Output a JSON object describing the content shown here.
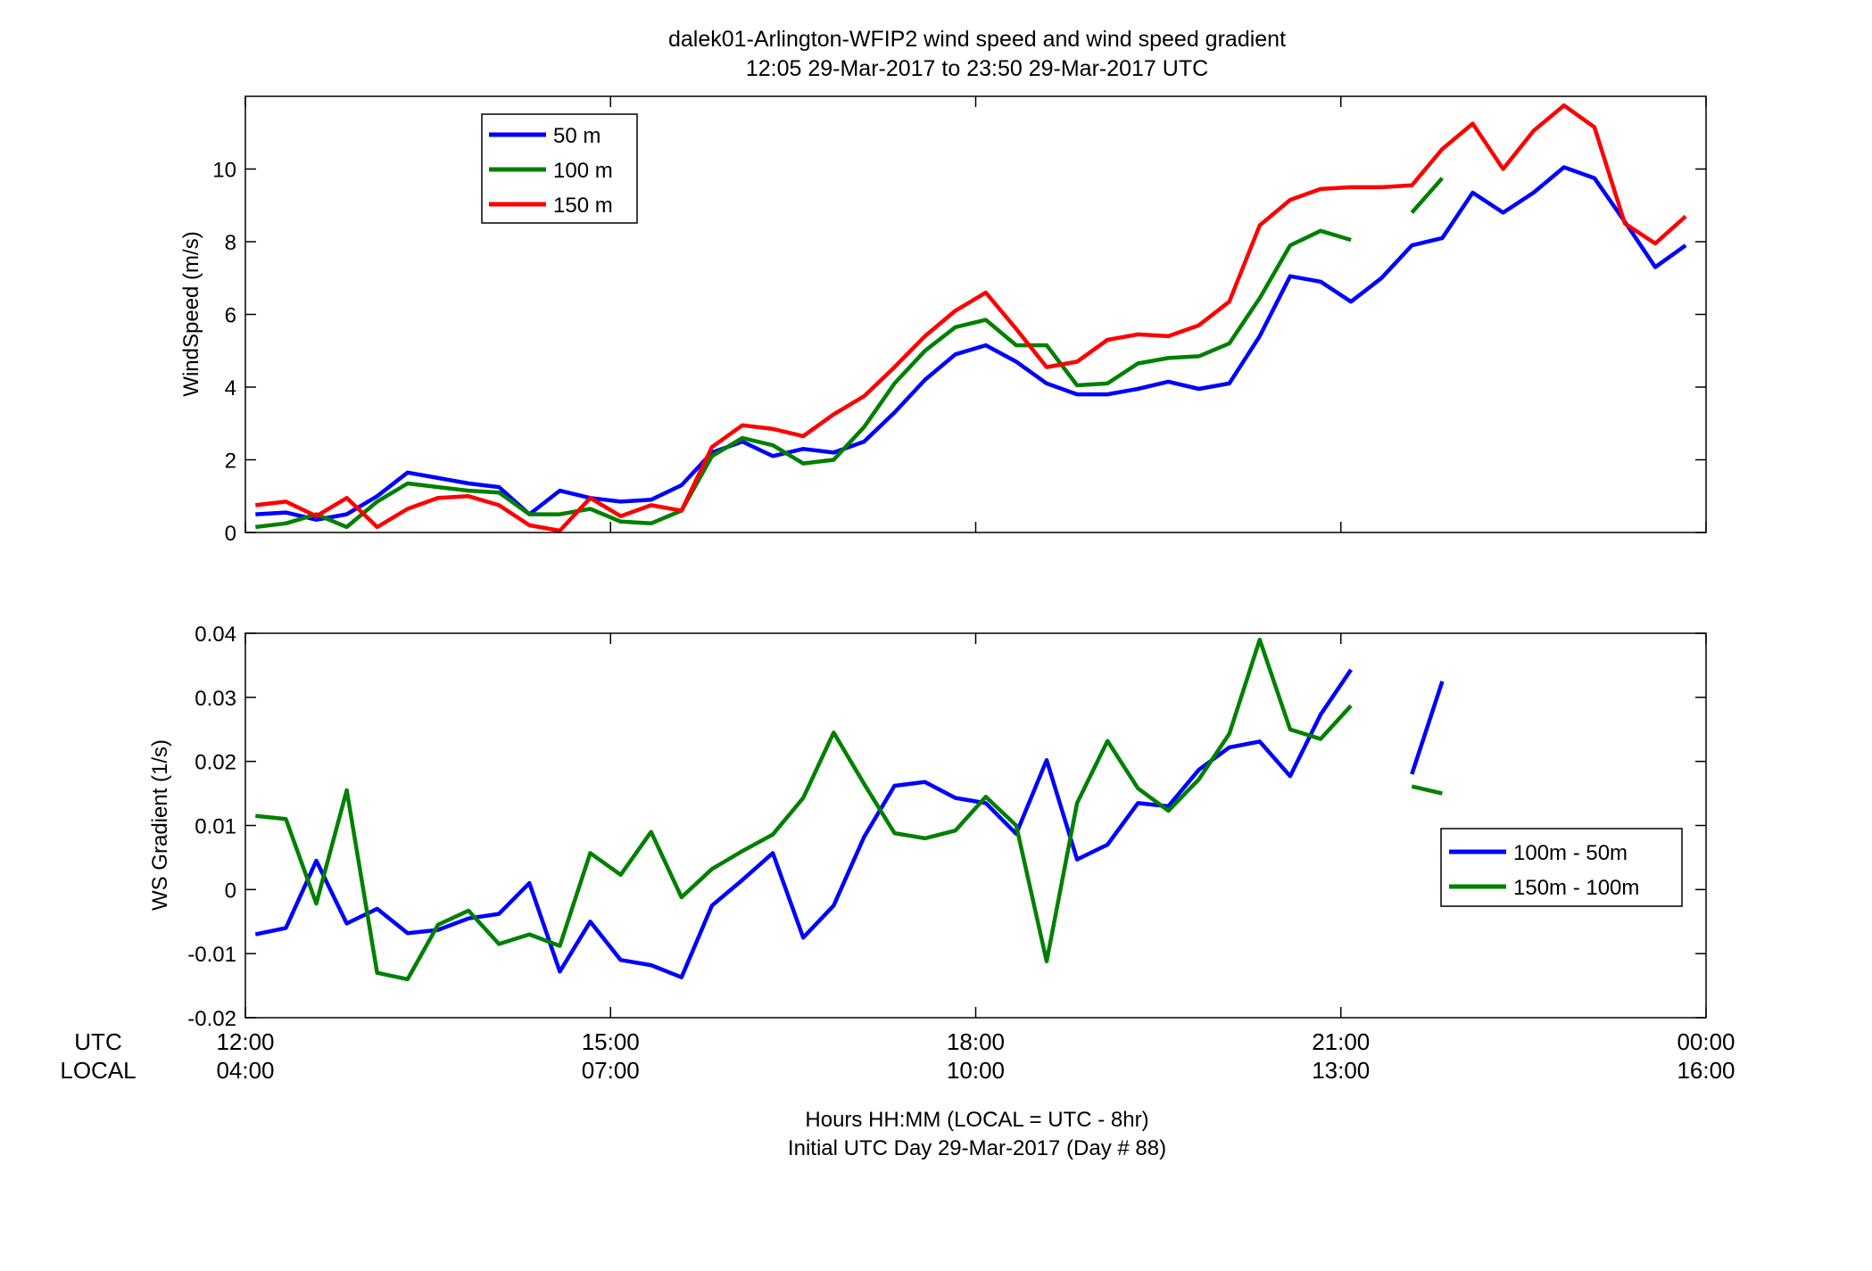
{
  "chart_data": [
    {
      "type": "line",
      "title": "dalek01-Arlington-WFIP2  wind speed and wind speed gradient",
      "subtitle": "12:05 29-Mar-2017 to 23:50 29-Mar-2017  UTC",
      "ylabel": "WindSpeed (m/s)",
      "xlim": [
        12,
        24
      ],
      "ylim": [
        0,
        12
      ],
      "yticks": [
        "0",
        "2",
        "4",
        "6",
        "8",
        "10"
      ],
      "grid": false,
      "legend_position": "top-left",
      "series": [
        {
          "name": "50 m",
          "color": "#0000ff",
          "x": [
            12.083,
            12.333,
            12.583,
            12.833,
            13.083,
            13.333,
            13.583,
            13.833,
            14.083,
            14.333,
            14.583,
            14.833,
            15.083,
            15.333,
            15.583,
            15.833,
            16.083,
            16.333,
            16.583,
            16.833,
            17.083,
            17.333,
            17.583,
            17.833,
            18.083,
            18.333,
            18.583,
            18.833,
            19.083,
            19.333,
            19.583,
            19.833,
            20.083,
            20.333,
            20.583,
            20.833,
            21.083,
            21.333,
            21.583,
            21.833,
            22.083,
            22.333,
            22.583,
            22.833,
            23.083,
            23.333,
            23.583,
            23.833
          ],
          "y": [
            0.5,
            0.55,
            0.35,
            0.5,
            1.0,
            1.65,
            1.5,
            1.35,
            1.25,
            0.5,
            1.15,
            0.95,
            0.85,
            0.9,
            1.3,
            2.2,
            2.5,
            2.1,
            2.3,
            2.2,
            2.5,
            3.3,
            4.2,
            4.9,
            5.15,
            4.7,
            4.1,
            3.8,
            3.8,
            3.95,
            4.15,
            3.95,
            4.1,
            5.4,
            7.05,
            6.9,
            6.35,
            7.0,
            7.9,
            8.1,
            9.35,
            8.8,
            9.35,
            10.05,
            9.75,
            8.55,
            7.3,
            7.9
          ]
        },
        {
          "name": "100 m",
          "color": "#008000",
          "x": [
            12.083,
            12.333,
            12.583,
            12.833,
            13.083,
            13.333,
            13.583,
            13.833,
            14.083,
            14.333,
            14.583,
            14.833,
            15.083,
            15.333,
            15.583,
            15.833,
            16.083,
            16.333,
            16.583,
            16.833,
            17.083,
            17.333,
            17.583,
            17.833,
            18.083,
            18.333,
            18.583,
            18.833,
            19.083,
            19.333,
            19.583,
            19.833,
            20.083,
            20.333,
            20.583,
            20.833,
            21.083,
            21.333,
            21.583,
            21.833
          ],
          "y": [
            0.15,
            0.25,
            0.5,
            0.15,
            0.85,
            1.35,
            1.25,
            1.15,
            1.1,
            0.5,
            0.5,
            0.65,
            0.3,
            0.25,
            0.6,
            2.1,
            2.6,
            2.4,
            1.9,
            2.0,
            2.9,
            4.1,
            5.0,
            5.65,
            5.85,
            5.15,
            5.15,
            4.05,
            4.1,
            4.65,
            4.8,
            4.85,
            5.2,
            6.45,
            7.9,
            8.3,
            8.05,
            null,
            8.8,
            9.75
          ]
        },
        {
          "name": "150 m",
          "color": "#ff0000",
          "x": [
            12.083,
            12.333,
            12.583,
            12.833,
            13.083,
            13.333,
            13.583,
            13.833,
            14.083,
            14.333,
            14.583,
            14.833,
            15.083,
            15.333,
            15.583,
            15.833,
            16.083,
            16.333,
            16.583,
            16.833,
            17.083,
            17.333,
            17.583,
            17.833,
            18.083,
            18.333,
            18.583,
            18.833,
            19.083,
            19.333,
            19.583,
            19.833,
            20.083,
            20.333,
            20.583,
            20.833,
            21.083,
            21.333,
            21.583,
            21.833,
            22.083,
            22.333,
            22.583,
            22.833,
            23.083,
            23.333,
            23.583,
            23.833
          ],
          "y": [
            0.75,
            0.85,
            0.45,
            0.95,
            0.15,
            0.65,
            0.95,
            1.0,
            0.75,
            0.2,
            0.05,
            0.95,
            0.45,
            0.75,
            0.6,
            2.35,
            2.95,
            2.85,
            2.65,
            3.25,
            3.75,
            4.55,
            5.4,
            6.1,
            6.6,
            5.6,
            4.55,
            4.7,
            5.3,
            5.45,
            5.4,
            5.7,
            6.35,
            8.45,
            9.15,
            9.45,
            9.5,
            9.5,
            9.55,
            10.55,
            11.25,
            10.0,
            11.05,
            11.75,
            11.15,
            8.5,
            7.95,
            8.7
          ]
        }
      ]
    },
    {
      "type": "line",
      "ylabel": "WS Gradient (1/s)",
      "xlabel": "Hours HH:MM  (LOCAL = UTC - 8hr)",
      "xlabel2": "Initial UTC Day 29-Mar-2017 (Day # 88)",
      "xlim": [
        12,
        24
      ],
      "ylim": [
        -0.02,
        0.04
      ],
      "yticks": [
        "-0.02",
        "-0.01",
        "0",
        "0.01",
        "0.02",
        "0.03",
        "0.04"
      ],
      "x_row_labels": [
        "UTC",
        "LOCAL"
      ],
      "xticks_utc": [
        "12:00",
        "15:00",
        "18:00",
        "21:00",
        "00:00"
      ],
      "xticks_local": [
        "04:00",
        "07:00",
        "10:00",
        "13:00",
        "16:00"
      ],
      "grid": false,
      "legend_position": "right",
      "series": [
        {
          "name": "100m - 50m",
          "color": "#0000ff",
          "x": [
            12.083,
            12.333,
            12.583,
            12.833,
            13.083,
            13.333,
            13.583,
            13.833,
            14.083,
            14.333,
            14.583,
            14.833,
            15.083,
            15.333,
            15.583,
            15.833,
            16.083,
            16.333,
            16.583,
            16.833,
            17.083,
            17.333,
            17.583,
            17.833,
            18.083,
            18.333,
            18.583,
            18.833,
            19.083,
            19.333,
            19.583,
            19.833,
            20.083,
            20.333,
            20.583,
            20.833,
            21.083,
            21.333,
            21.583,
            21.833
          ],
          "y": [
            -0.007,
            -0.006,
            0.0045,
            -0.0053,
            -0.003,
            -0.0068,
            -0.0063,
            -0.0045,
            -0.0038,
            0.001,
            -0.0128,
            -0.005,
            -0.011,
            -0.0118,
            -0.0137,
            -0.0025,
            0.0015,
            0.0057,
            -0.0075,
            -0.0025,
            0.0082,
            0.0162,
            0.0168,
            0.0143,
            0.0135,
            0.0087,
            0.0202,
            0.0047,
            0.007,
            0.0135,
            0.013,
            0.0187,
            0.0222,
            0.0231,
            0.0177,
            0.0273,
            0.0343,
            null,
            0.018,
            0.0325
          ]
        },
        {
          "name": "150m - 100m",
          "color": "#008000",
          "x": [
            12.083,
            12.333,
            12.583,
            12.833,
            13.083,
            13.333,
            13.583,
            13.833,
            14.083,
            14.333,
            14.583,
            14.833,
            15.083,
            15.333,
            15.583,
            15.833,
            16.083,
            16.333,
            16.583,
            16.833,
            17.083,
            17.333,
            17.583,
            17.833,
            18.083,
            18.333,
            18.583,
            18.833,
            19.083,
            19.333,
            19.583,
            19.833,
            20.083,
            20.333,
            20.583,
            20.833,
            21.083,
            21.333,
            21.583,
            21.833
          ],
          "y": [
            0.0115,
            0.011,
            -0.0022,
            0.0155,
            -0.013,
            -0.014,
            -0.0055,
            -0.0033,
            -0.0085,
            -0.007,
            -0.0088,
            0.0057,
            0.0023,
            0.009,
            -0.0012,
            0.0032,
            0.006,
            0.0086,
            0.0143,
            0.0245,
            0.0165,
            0.0088,
            0.008,
            0.0092,
            0.0145,
            0.01,
            -0.0112,
            0.0135,
            0.0232,
            0.0158,
            0.0123,
            0.0172,
            0.0243,
            0.039,
            0.025,
            0.0235,
            0.0287,
            null,
            0.0161,
            0.015
          ]
        }
      ]
    }
  ]
}
